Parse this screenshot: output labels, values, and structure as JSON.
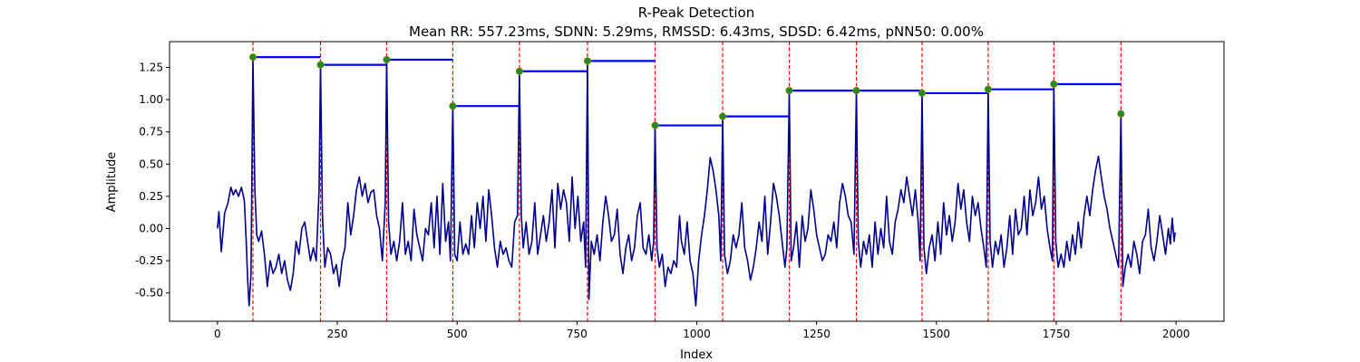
{
  "chart_data": {
    "type": "line",
    "title": "R-Peak Detection",
    "subtitle": "Mean RR: 557.23ms, SDNN: 5.29ms, RMSSD: 6.43ms, SDSD: 6.42ms, pNN50: 0.00%",
    "xlabel": "Index",
    "ylabel": "Amplitude",
    "xlim": [
      -100,
      2100
    ],
    "ylim": [
      -0.72,
      1.45
    ],
    "x_ticks": [
      0,
      250,
      500,
      750,
      1000,
      1250,
      1500,
      1750,
      2000
    ],
    "y_ticks": [
      -0.5,
      -0.25,
      0.0,
      0.25,
      0.5,
      0.75,
      1.0,
      1.25
    ],
    "grid": false,
    "colors": {
      "signal": "#00008b",
      "peak_lines": "#ff0000",
      "rr_segments": "#0000ff",
      "peak_markers": "#228b22"
    },
    "signal_outline": [
      [
        0,
        0.0
      ],
      [
        3,
        0.13
      ],
      [
        8,
        -0.18
      ],
      [
        15,
        0.12
      ],
      [
        22,
        0.2
      ],
      [
        28,
        0.32
      ],
      [
        33,
        0.26
      ],
      [
        38,
        0.3
      ],
      [
        44,
        0.25
      ],
      [
        50,
        0.32
      ],
      [
        56,
        0.22
      ],
      [
        60,
        -0.1
      ],
      [
        63,
        -0.4
      ],
      [
        66,
        -0.6
      ],
      [
        70,
        -0.35
      ],
      [
        74,
        1.33
      ],
      [
        78,
        0.3
      ],
      [
        82,
        -0.05
      ],
      [
        86,
        -0.1
      ],
      [
        92,
        -0.02
      ],
      [
        98,
        -0.2
      ],
      [
        104,
        -0.45
      ],
      [
        110,
        -0.25
      ],
      [
        116,
        -0.35
      ],
      [
        122,
        -0.3
      ],
      [
        128,
        -0.2
      ],
      [
        134,
        -0.35
      ],
      [
        140,
        -0.25
      ],
      [
        146,
        -0.4
      ],
      [
        152,
        -0.48
      ],
      [
        158,
        -0.35
      ],
      [
        164,
        -0.1
      ],
      [
        170,
        -0.2
      ],
      [
        176,
        0.0
      ],
      [
        182,
        0.05
      ],
      [
        188,
        -0.1
      ],
      [
        194,
        -0.25
      ],
      [
        200,
        -0.15
      ],
      [
        206,
        -0.25
      ],
      [
        212,
        0.3
      ],
      [
        215,
        1.27
      ],
      [
        219,
        0.1
      ],
      [
        224,
        -0.3
      ],
      [
        230,
        -0.15
      ],
      [
        236,
        -0.2
      ],
      [
        242,
        -0.35
      ],
      [
        248,
        -0.28
      ],
      [
        254,
        -0.45
      ],
      [
        260,
        -0.25
      ],
      [
        266,
        -0.15
      ],
      [
        272,
        0.2
      ],
      [
        278,
        -0.05
      ],
      [
        284,
        0.1
      ],
      [
        290,
        0.3
      ],
      [
        296,
        0.4
      ],
      [
        302,
        0.25
      ],
      [
        308,
        0.35
      ],
      [
        314,
        0.2
      ],
      [
        320,
        0.28
      ],
      [
        326,
        0.3
      ],
      [
        332,
        0.1
      ],
      [
        338,
        0.0
      ],
      [
        344,
        -0.25
      ],
      [
        350,
        0.2
      ],
      [
        353,
        1.31
      ],
      [
        357,
        0.05
      ],
      [
        362,
        -0.2
      ],
      [
        368,
        -0.1
      ],
      [
        374,
        -0.25
      ],
      [
        380,
        -0.1
      ],
      [
        386,
        0.2
      ],
      [
        392,
        -0.2
      ],
      [
        398,
        -0.1
      ],
      [
        404,
        -0.25
      ],
      [
        410,
        0.15
      ],
      [
        416,
        -0.05
      ],
      [
        422,
        -0.15
      ],
      [
        428,
        -0.25
      ],
      [
        434,
        0.0
      ],
      [
        440,
        -0.05
      ],
      [
        446,
        0.2
      ],
      [
        452,
        -0.15
      ],
      [
        458,
        0.25
      ],
      [
        464,
        -0.2
      ],
      [
        470,
        0.35
      ],
      [
        476,
        -0.1
      ],
      [
        482,
        0.05
      ],
      [
        486,
        -0.25
      ],
      [
        491,
        0.95
      ],
      [
        495,
        -0.2
      ],
      [
        500,
        -0.25
      ],
      [
        506,
        0.05
      ],
      [
        512,
        -0.2
      ],
      [
        518,
        -0.12
      ],
      [
        524,
        -0.2
      ],
      [
        530,
        0.1
      ],
      [
        536,
        -0.15
      ],
      [
        542,
        0.2
      ],
      [
        548,
        0.0
      ],
      [
        554,
        0.25
      ],
      [
        560,
        -0.1
      ],
      [
        566,
        0.3
      ],
      [
        572,
        0.1
      ],
      [
        578,
        -0.15
      ],
      [
        584,
        -0.3
      ],
      [
        590,
        -0.1
      ],
      [
        596,
        -0.2
      ],
      [
        602,
        -0.15
      ],
      [
        608,
        -0.25
      ],
      [
        614,
        -0.3
      ],
      [
        620,
        0.05
      ],
      [
        626,
        0.1
      ],
      [
        630,
        1.22
      ],
      [
        634,
        0.1
      ],
      [
        638,
        -0.15
      ],
      [
        644,
        0.05
      ],
      [
        650,
        -0.2
      ],
      [
        656,
        -0.1
      ],
      [
        662,
        0.2
      ],
      [
        668,
        -0.2
      ],
      [
        674,
        -0.05
      ],
      [
        680,
        0.1
      ],
      [
        686,
        -0.1
      ],
      [
        692,
        0.05
      ],
      [
        698,
        0.3
      ],
      [
        704,
        -0.15
      ],
      [
        710,
        0.35
      ],
      [
        716,
        0.15
      ],
      [
        722,
        0.3
      ],
      [
        728,
        0.2
      ],
      [
        734,
        -0.1
      ],
      [
        740,
        0.4
      ],
      [
        746,
        0.0
      ],
      [
        752,
        0.25
      ],
      [
        758,
        -0.1
      ],
      [
        764,
        0.05
      ],
      [
        768,
        -0.3
      ],
      [
        772,
        1.3
      ],
      [
        775,
        -0.55
      ],
      [
        780,
        -0.1
      ],
      [
        786,
        -0.2
      ],
      [
        792,
        -0.05
      ],
      [
        798,
        -0.25
      ],
      [
        804,
        0.05
      ],
      [
        810,
        0.25
      ],
      [
        816,
        0.1
      ],
      [
        822,
        -0.1
      ],
      [
        828,
        -0.05
      ],
      [
        834,
        0.15
      ],
      [
        840,
        -0.2
      ],
      [
        846,
        -0.35
      ],
      [
        852,
        -0.15
      ],
      [
        858,
        -0.05
      ],
      [
        864,
        -0.25
      ],
      [
        870,
        -0.15
      ],
      [
        876,
        0.1
      ],
      [
        882,
        0.2
      ],
      [
        888,
        -0.15
      ],
      [
        894,
        -0.2
      ],
      [
        900,
        -0.05
      ],
      [
        906,
        -0.25
      ],
      [
        910,
        -0.1
      ],
      [
        913,
        0.8
      ],
      [
        917,
        -0.15
      ],
      [
        922,
        -0.3
      ],
      [
        928,
        -0.2
      ],
      [
        934,
        -0.45
      ],
      [
        940,
        -0.3
      ],
      [
        946,
        -0.35
      ],
      [
        952,
        -0.25
      ],
      [
        958,
        -0.3
      ],
      [
        964,
        0.1
      ],
      [
        968,
        -0.1
      ],
      [
        974,
        -0.2
      ],
      [
        980,
        0.05
      ],
      [
        986,
        -0.25
      ],
      [
        992,
        -0.35
      ],
      [
        998,
        -0.6
      ],
      [
        1004,
        -0.25
      ],
      [
        1010,
        -0.05
      ],
      [
        1016,
        0.1
      ],
      [
        1022,
        0.3
      ],
      [
        1028,
        0.55
      ],
      [
        1034,
        0.45
      ],
      [
        1040,
        0.3
      ],
      [
        1046,
        0.1
      ],
      [
        1050,
        -0.25
      ],
      [
        1054,
        0.87
      ],
      [
        1058,
        -0.2
      ],
      [
        1064,
        -0.35
      ],
      [
        1070,
        -0.25
      ],
      [
        1076,
        -0.05
      ],
      [
        1082,
        -0.15
      ],
      [
        1088,
        -0.05
      ],
      [
        1094,
        0.2
      ],
      [
        1100,
        -0.15
      ],
      [
        1106,
        -0.25
      ],
      [
        1112,
        -0.4
      ],
      [
        1118,
        -0.3
      ],
      [
        1124,
        -0.15
      ],
      [
        1130,
        0.05
      ],
      [
        1136,
        -0.1
      ],
      [
        1142,
        0.25
      ],
      [
        1148,
        -0.2
      ],
      [
        1154,
        0.05
      ],
      [
        1160,
        0.35
      ],
      [
        1166,
        0.25
      ],
      [
        1172,
        0.1
      ],
      [
        1178,
        -0.1
      ],
      [
        1184,
        -0.3
      ],
      [
        1188,
        -0.15
      ],
      [
        1193,
        1.07
      ],
      [
        1197,
        -0.25
      ],
      [
        1202,
        -0.15
      ],
      [
        1208,
        0.05
      ],
      [
        1214,
        -0.3
      ],
      [
        1220,
        0.1
      ],
      [
        1226,
        -0.1
      ],
      [
        1232,
        0.0
      ],
      [
        1238,
        0.3
      ],
      [
        1244,
        0.15
      ],
      [
        1250,
        -0.05
      ],
      [
        1256,
        -0.15
      ],
      [
        1262,
        -0.25
      ],
      [
        1268,
        -0.2
      ],
      [
        1274,
        -0.05
      ],
      [
        1280,
        -0.1
      ],
      [
        1286,
        0.05
      ],
      [
        1292,
        -0.15
      ],
      [
        1298,
        0.2
      ],
      [
        1304,
        0.35
      ],
      [
        1310,
        0.25
      ],
      [
        1316,
        0.1
      ],
      [
        1322,
        0.05
      ],
      [
        1328,
        -0.2
      ],
      [
        1333,
        1.07
      ],
      [
        1337,
        -0.1
      ],
      [
        1342,
        -0.3
      ],
      [
        1348,
        -0.1
      ],
      [
        1354,
        -0.2
      ],
      [
        1360,
        -0.05
      ],
      [
        1366,
        -0.3
      ],
      [
        1372,
        0.05
      ],
      [
        1378,
        -0.2
      ],
      [
        1384,
        0.0
      ],
      [
        1390,
        -0.15
      ],
      [
        1396,
        0.25
      ],
      [
        1402,
        -0.1
      ],
      [
        1408,
        -0.2
      ],
      [
        1414,
        0.05
      ],
      [
        1420,
        0.15
      ],
      [
        1426,
        0.3
      ],
      [
        1432,
        0.2
      ],
      [
        1438,
        0.4
      ],
      [
        1444,
        0.25
      ],
      [
        1450,
        0.1
      ],
      [
        1456,
        0.3
      ],
      [
        1462,
        0.05
      ],
      [
        1466,
        -0.25
      ],
      [
        1470,
        1.05
      ],
      [
        1474,
        -0.15
      ],
      [
        1479,
        -0.35
      ],
      [
        1485,
        -0.15
      ],
      [
        1491,
        -0.05
      ],
      [
        1497,
        -0.25
      ],
      [
        1503,
        0.05
      ],
      [
        1509,
        -0.2
      ],
      [
        1515,
        0.2
      ],
      [
        1521,
        -0.05
      ],
      [
        1527,
        0.1
      ],
      [
        1533,
        -0.1
      ],
      [
        1539,
        0.05
      ],
      [
        1545,
        0.35
      ],
      [
        1551,
        0.15
      ],
      [
        1557,
        0.3
      ],
      [
        1563,
        0.05
      ],
      [
        1569,
        -0.1
      ],
      [
        1575,
        0.25
      ],
      [
        1581,
        0.1
      ],
      [
        1587,
        0.2
      ],
      [
        1593,
        0.0
      ],
      [
        1599,
        -0.15
      ],
      [
        1604,
        -0.3
      ],
      [
        1608,
        1.08
      ],
      [
        1612,
        -0.1
      ],
      [
        1617,
        -0.3
      ],
      [
        1623,
        -0.1
      ],
      [
        1629,
        -0.2
      ],
      [
        1635,
        -0.05
      ],
      [
        1641,
        -0.3
      ],
      [
        1647,
        -0.15
      ],
      [
        1653,
        0.1
      ],
      [
        1659,
        -0.2
      ],
      [
        1665,
        0.15
      ],
      [
        1671,
        -0.05
      ],
      [
        1677,
        0.0
      ],
      [
        1683,
        0.25
      ],
      [
        1689,
        -0.05
      ],
      [
        1695,
        0.3
      ],
      [
        1701,
        0.1
      ],
      [
        1707,
        0.2
      ],
      [
        1713,
        0.4
      ],
      [
        1719,
        0.15
      ],
      [
        1725,
        0.25
      ],
      [
        1731,
        0.0
      ],
      [
        1737,
        -0.15
      ],
      [
        1742,
        -0.25
      ],
      [
        1745,
        1.12
      ],
      [
        1749,
        -0.1
      ],
      [
        1754,
        -0.3
      ],
      [
        1760,
        -0.2
      ],
      [
        1766,
        -0.3
      ],
      [
        1772,
        -0.1
      ],
      [
        1778,
        -0.25
      ],
      [
        1784,
        -0.05
      ],
      [
        1790,
        -0.2
      ],
      [
        1796,
        0.05
      ],
      [
        1802,
        -0.15
      ],
      [
        1808,
        0.1
      ],
      [
        1814,
        0.25
      ],
      [
        1820,
        0.1
      ],
      [
        1826,
        0.3
      ],
      [
        1832,
        0.45
      ],
      [
        1838,
        0.56
      ],
      [
        1844,
        0.4
      ],
      [
        1850,
        0.25
      ],
      [
        1856,
        0.15
      ],
      [
        1862,
        0.0
      ],
      [
        1868,
        -0.1
      ],
      [
        1874,
        -0.2
      ],
      [
        1880,
        -0.3
      ],
      [
        1885,
        0.89
      ],
      [
        1889,
        -0.45
      ],
      [
        1894,
        -0.3
      ],
      [
        1900,
        -0.2
      ],
      [
        1906,
        -0.3
      ],
      [
        1912,
        -0.1
      ],
      [
        1918,
        -0.2
      ],
      [
        1924,
        -0.35
      ],
      [
        1930,
        -0.1
      ],
      [
        1936,
        -0.05
      ],
      [
        1942,
        0.15
      ],
      [
        1948,
        -0.15
      ],
      [
        1954,
        -0.25
      ],
      [
        1960,
        -0.1
      ],
      [
        1966,
        0.1
      ],
      [
        1972,
        -0.05
      ],
      [
        1978,
        -0.2
      ],
      [
        1984,
        0.0
      ],
      [
        1988,
        -0.12
      ],
      [
        1992,
        0.08
      ],
      [
        1996,
        -0.1
      ],
      [
        1998,
        -0.03
      ]
    ],
    "peaks": [
      {
        "x": 74,
        "y": 1.33
      },
      {
        "x": 215,
        "y": 1.27
      },
      {
        "x": 353,
        "y": 1.31
      },
      {
        "x": 491,
        "y": 0.95
      },
      {
        "x": 630,
        "y": 1.22
      },
      {
        "x": 772,
        "y": 1.3
      },
      {
        "x": 913,
        "y": 0.8
      },
      {
        "x": 1054,
        "y": 0.87
      },
      {
        "x": 1193,
        "y": 1.07
      },
      {
        "x": 1333,
        "y": 1.07
      },
      {
        "x": 1470,
        "y": 1.05
      },
      {
        "x": 1608,
        "y": 1.08
      },
      {
        "x": 1745,
        "y": 1.12
      },
      {
        "x": 1885,
        "y": 0.89
      }
    ]
  }
}
